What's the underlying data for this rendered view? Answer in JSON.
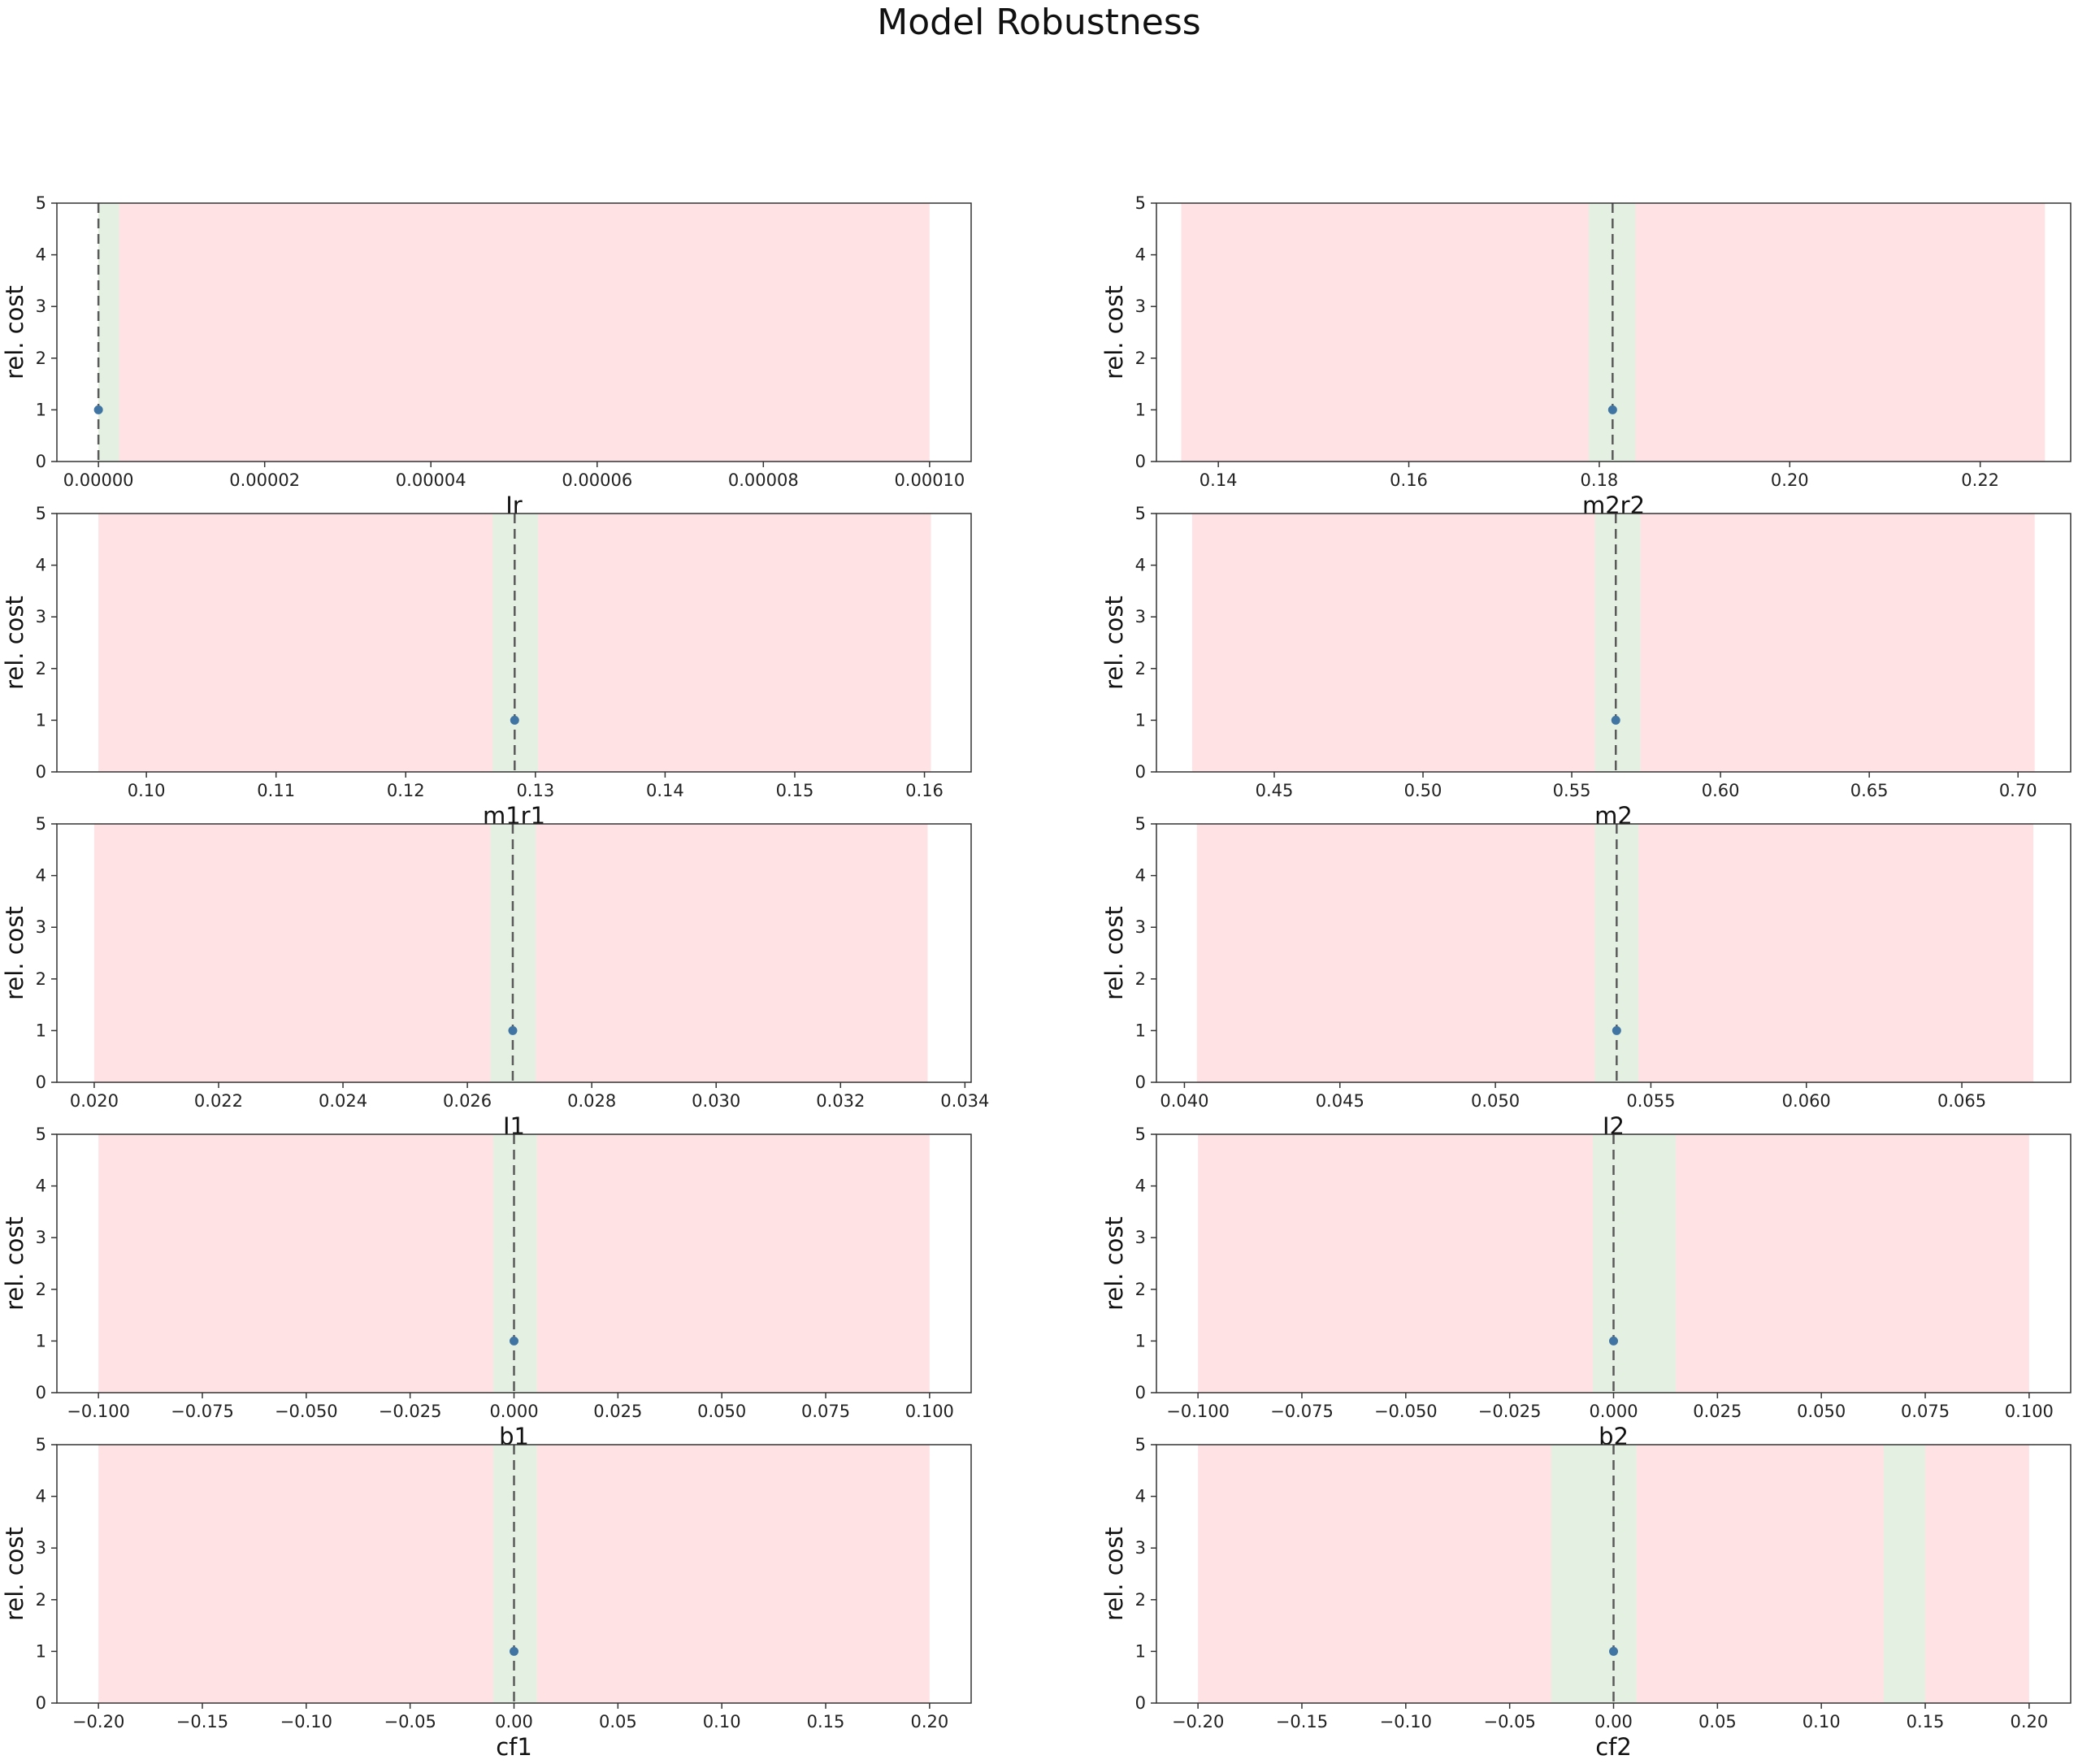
{
  "figure": {
    "title": "Model Robustness"
  },
  "chart_data": [
    {
      "type": "scatter",
      "xlabel": "Ir",
      "ylabel": "rel. cost",
      "xlim": [
        -5e-06,
        0.000105
      ],
      "ylim": [
        0,
        5
      ],
      "xticks": [
        0,
        2e-05,
        4e-05,
        6e-05,
        8e-05,
        0.0001
      ],
      "xtick_labels": [
        "0.00000",
        "0.00002",
        "0.00004",
        "0.00006",
        "0.00008",
        "0.00010"
      ],
      "yticks": [
        0,
        1,
        2,
        3,
        4,
        5
      ],
      "ytick_labels": [
        "0",
        "1",
        "2",
        "3",
        "4",
        "5"
      ],
      "red_span": [
        0.0,
        0.0001
      ],
      "green_spans": [
        [
          0.0,
          2.5e-06
        ]
      ],
      "optimum_line_x": 0.0,
      "points": [
        {
          "x": 0.0,
          "y": 1
        }
      ]
    },
    {
      "type": "scatter",
      "xlabel": "m2r2",
      "ylabel": "rel. cost",
      "xlim": [
        0.1335,
        0.2295
      ],
      "ylim": [
        0,
        5
      ],
      "xticks": [
        0.14,
        0.16,
        0.18,
        0.2,
        0.22
      ],
      "xtick_labels": [
        "0.14",
        "0.16",
        "0.18",
        "0.20",
        "0.22"
      ],
      "yticks": [
        0,
        1,
        2,
        3,
        4,
        5
      ],
      "ytick_labels": [
        "0",
        "1",
        "2",
        "3",
        "4",
        "5"
      ],
      "red_span": [
        0.1361,
        0.2268
      ],
      "green_spans": [
        [
          0.1789,
          0.1838
        ]
      ],
      "optimum_line_x": 0.1814,
      "points": [
        {
          "x": 0.1814,
          "y": 1
        }
      ]
    },
    {
      "type": "scatter",
      "xlabel": "m1r1",
      "ylabel": "rel. cost",
      "xlim": [
        0.0931,
        0.1636
      ],
      "ylim": [
        0,
        5
      ],
      "xticks": [
        0.1,
        0.11,
        0.12,
        0.13,
        0.14,
        0.15,
        0.16
      ],
      "xtick_labels": [
        "0.10",
        "0.11",
        "0.12",
        "0.13",
        "0.14",
        "0.15",
        "0.16"
      ],
      "yticks": [
        0,
        1,
        2,
        3,
        4,
        5
      ],
      "ytick_labels": [
        "0",
        "1",
        "2",
        "3",
        "4",
        "5"
      ],
      "red_span": [
        0.0963,
        0.1605
      ],
      "green_spans": [
        [
          0.1267,
          0.1302
        ]
      ],
      "optimum_line_x": 0.1284,
      "points": [
        {
          "x": 0.1284,
          "y": 1
        }
      ]
    },
    {
      "type": "scatter",
      "xlabel": "m2",
      "ylabel": "rel. cost",
      "xlim": [
        0.4104,
        0.7177
      ],
      "ylim": [
        0,
        5
      ],
      "xticks": [
        0.45,
        0.5,
        0.55,
        0.6,
        0.65,
        0.7
      ],
      "xtick_labels": [
        "0.45",
        "0.50",
        "0.55",
        "0.60",
        "0.65",
        "0.70"
      ],
      "yticks": [
        0,
        1,
        2,
        3,
        4,
        5
      ],
      "ytick_labels": [
        "0",
        "1",
        "2",
        "3",
        "4",
        "5"
      ],
      "red_span": [
        0.4224,
        0.7056
      ],
      "green_spans": [
        [
          0.5578,
          0.5731
        ]
      ],
      "optimum_line_x": 0.5648,
      "points": [
        {
          "x": 0.5648,
          "y": 1
        }
      ]
    },
    {
      "type": "scatter",
      "xlabel": "I1",
      "ylabel": "rel. cost",
      "xlim": [
        0.0194,
        0.0341
      ],
      "ylim": [
        0,
        5
      ],
      "xticks": [
        0.02,
        0.022,
        0.024,
        0.026,
        0.028,
        0.03,
        0.032,
        0.034
      ],
      "xtick_labels": [
        "0.020",
        "0.022",
        "0.024",
        "0.026",
        "0.028",
        "0.030",
        "0.032",
        "0.034"
      ],
      "yticks": [
        0,
        1,
        2,
        3,
        4,
        5
      ],
      "ytick_labels": [
        "0",
        "1",
        "2",
        "3",
        "4",
        "5"
      ],
      "red_span": [
        0.02,
        0.0334
      ],
      "green_spans": [
        [
          0.02637,
          0.0271
        ]
      ],
      "optimum_line_x": 0.02673,
      "points": [
        {
          "x": 0.02673,
          "y": 1
        }
      ]
    },
    {
      "type": "scatter",
      "xlabel": "I2",
      "ylabel": "rel. cost",
      "xlim": [
        0.0391,
        0.0685
      ],
      "ylim": [
        0,
        5
      ],
      "xticks": [
        0.04,
        0.045,
        0.05,
        0.055,
        0.06,
        0.065
      ],
      "xtick_labels": [
        "0.040",
        "0.045",
        "0.050",
        "0.055",
        "0.060",
        "0.065"
      ],
      "yticks": [
        0,
        1,
        2,
        3,
        4,
        5
      ],
      "ytick_labels": [
        "0",
        "1",
        "2",
        "3",
        "4",
        "5"
      ],
      "red_span": [
        0.0404,
        0.0673
      ],
      "green_spans": [
        [
          0.0532,
          0.0546
        ]
      ],
      "optimum_line_x": 0.0539,
      "points": [
        {
          "x": 0.0539,
          "y": 1
        }
      ]
    },
    {
      "type": "scatter",
      "xlabel": "b1",
      "ylabel": "rel. cost",
      "xlim": [
        -0.11,
        0.11
      ],
      "ylim": [
        0,
        5
      ],
      "xticks": [
        -0.1,
        -0.075,
        -0.05,
        -0.025,
        0,
        0.025,
        0.05,
        0.075,
        0.1
      ],
      "xtick_labels": [
        "−0.100",
        "−0.075",
        "−0.050",
        "−0.025",
        "0.000",
        "0.025",
        "0.050",
        "0.075",
        "0.100"
      ],
      "yticks": [
        0,
        1,
        2,
        3,
        4,
        5
      ],
      "ytick_labels": [
        "0",
        "1",
        "2",
        "3",
        "4",
        "5"
      ],
      "red_span": [
        -0.1,
        0.1
      ],
      "green_spans": [
        [
          -0.005,
          0.0055
        ]
      ],
      "optimum_line_x": 0.0,
      "points": [
        {
          "x": 0.0,
          "y": 1
        }
      ]
    },
    {
      "type": "scatter",
      "xlabel": "b2",
      "ylabel": "rel. cost",
      "xlim": [
        -0.11,
        0.11
      ],
      "ylim": [
        0,
        5
      ],
      "xticks": [
        -0.1,
        -0.075,
        -0.05,
        -0.025,
        0,
        0.025,
        0.05,
        0.075,
        0.1
      ],
      "xtick_labels": [
        "−0.100",
        "−0.075",
        "−0.050",
        "−0.025",
        "0.000",
        "0.025",
        "0.050",
        "0.075",
        "0.100"
      ],
      "yticks": [
        0,
        1,
        2,
        3,
        4,
        5
      ],
      "ytick_labels": [
        "0",
        "1",
        "2",
        "3",
        "4",
        "5"
      ],
      "red_span": [
        -0.1,
        0.1
      ],
      "green_spans": [
        [
          -0.005,
          0.015
        ]
      ],
      "optimum_line_x": 0.0,
      "points": [
        {
          "x": 0.0,
          "y": 1
        }
      ]
    },
    {
      "type": "scatter",
      "xlabel": "cf1",
      "ylabel": "rel. cost",
      "xlim": [
        -0.22,
        0.22
      ],
      "ylim": [
        0,
        5
      ],
      "xticks": [
        -0.2,
        -0.15,
        -0.1,
        -0.05,
        0,
        0.05,
        0.1,
        0.15,
        0.2
      ],
      "xtick_labels": [
        "−0.20",
        "−0.15",
        "−0.10",
        "−0.05",
        "0.00",
        "0.05",
        "0.10",
        "0.15",
        "0.20"
      ],
      "yticks": [
        0,
        1,
        2,
        3,
        4,
        5
      ],
      "ytick_labels": [
        "0",
        "1",
        "2",
        "3",
        "4",
        "5"
      ],
      "red_span": [
        -0.2,
        0.2
      ],
      "green_spans": [
        [
          -0.01,
          0.011
        ]
      ],
      "optimum_line_x": 0.0,
      "points": [
        {
          "x": 0.0,
          "y": 1
        }
      ]
    },
    {
      "type": "scatter",
      "xlabel": "cf2",
      "ylabel": "rel. cost",
      "xlim": [
        -0.22,
        0.22
      ],
      "ylim": [
        0,
        5
      ],
      "xticks": [
        -0.2,
        -0.15,
        -0.1,
        -0.05,
        0,
        0.05,
        0.1,
        0.15,
        0.2
      ],
      "xtick_labels": [
        "−0.20",
        "−0.15",
        "−0.10",
        "−0.05",
        "0.00",
        "0.05",
        "0.10",
        "0.15",
        "0.20"
      ],
      "yticks": [
        0,
        1,
        2,
        3,
        4,
        5
      ],
      "ytick_labels": [
        "0",
        "1",
        "2",
        "3",
        "4",
        "5"
      ],
      "red_span": [
        -0.2,
        0.2
      ],
      "green_spans": [
        [
          -0.03,
          0.011
        ],
        [
          0.13,
          0.15
        ]
      ],
      "optimum_line_x": 0.0,
      "points": [
        {
          "x": 0.0,
          "y": 1
        }
      ]
    }
  ],
  "colors": {
    "red_region": "#ffe2e4",
    "green_region": "#e4f1e2",
    "optimum_line": "#5a5a5a",
    "marker": "#3f74a3",
    "axes": "#333333"
  }
}
